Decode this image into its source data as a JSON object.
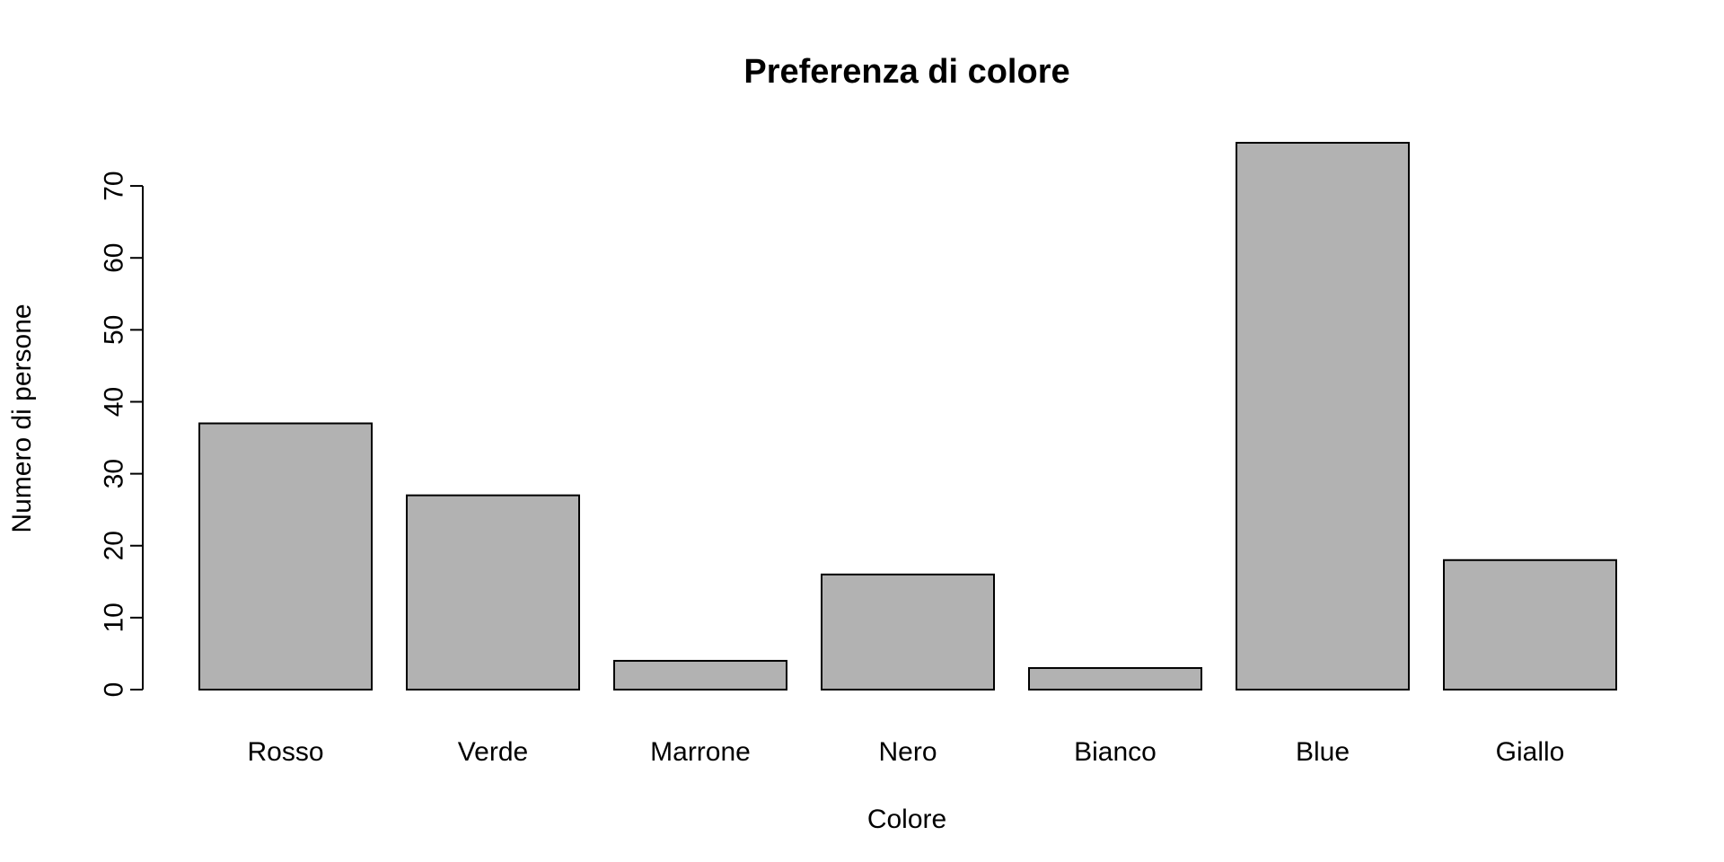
{
  "chart_data": {
    "type": "bar",
    "title": "Preferenza di colore",
    "xlabel": "Colore",
    "ylabel": "Numero di persone",
    "categories": [
      "Rosso",
      "Verde",
      "Marrone",
      "Nero",
      "Bianco",
      "Blue",
      "Giallo"
    ],
    "values": [
      37,
      27,
      4,
      16,
      3,
      76,
      18
    ],
    "ylim": [
      0,
      76
    ],
    "yticks": [
      0,
      10,
      20,
      30,
      40,
      50,
      60,
      70
    ],
    "bar_color": "#b2b2b2",
    "grid": false,
    "legend": "none"
  }
}
